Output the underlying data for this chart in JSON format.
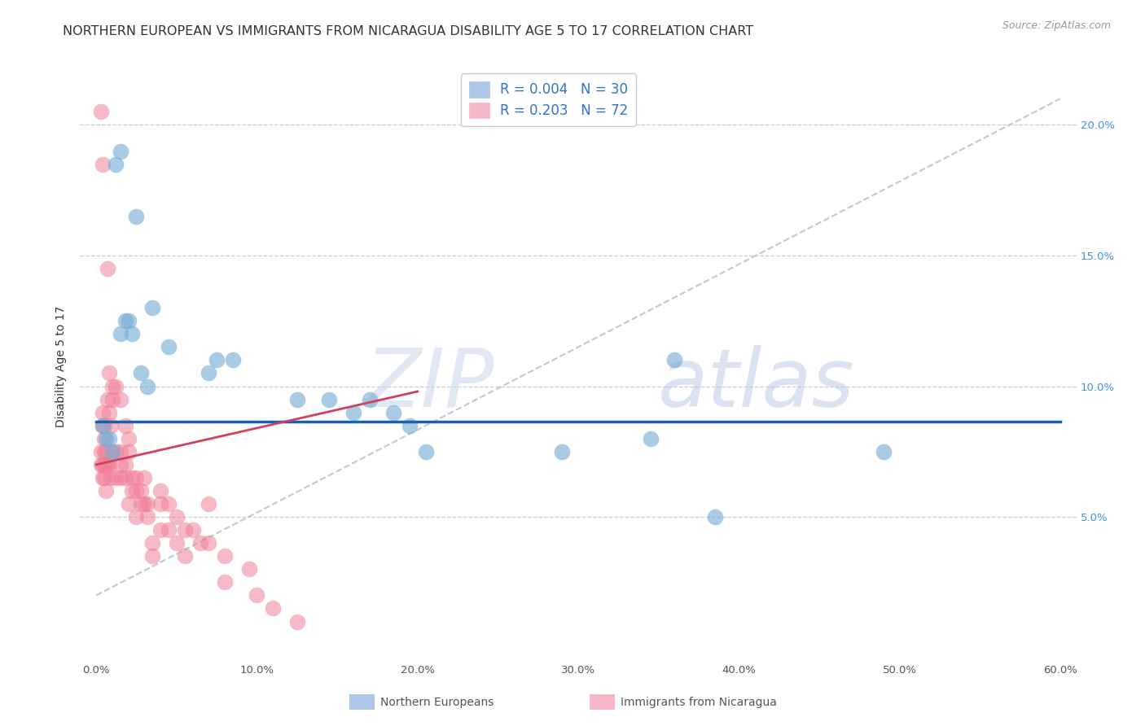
{
  "title": "NORTHERN EUROPEAN VS IMMIGRANTS FROM NICARAGUA DISABILITY AGE 5 TO 17 CORRELATION CHART",
  "source": "Source: ZipAtlas.com",
  "xlabel_ticks": [
    "0.0%",
    "10.0%",
    "20.0%",
    "30.0%",
    "40.0%",
    "50.0%",
    "60.0%"
  ],
  "ylabel_ticks_right": [
    "5.0%",
    "10.0%",
    "15.0%",
    "20.0%"
  ],
  "xlim": [
    -1.0,
    61.0
  ],
  "ylim": [
    -0.5,
    22.0
  ],
  "blue_scatter_x": [
    1.5,
    1.2,
    2.5,
    3.5,
    2.0,
    1.8,
    1.5,
    2.2,
    2.8,
    3.2,
    4.5,
    7.0,
    7.5,
    8.5,
    12.5,
    14.5,
    16.0,
    17.0,
    18.5,
    19.5,
    20.5,
    0.4,
    0.6,
    0.8,
    1.0,
    36.0,
    49.0,
    29.0,
    34.5,
    38.5
  ],
  "blue_scatter_y": [
    19.0,
    18.5,
    16.5,
    13.0,
    12.5,
    12.5,
    12.0,
    12.0,
    10.5,
    10.0,
    11.5,
    10.5,
    11.0,
    11.0,
    9.5,
    9.5,
    9.0,
    9.5,
    9.0,
    8.5,
    7.5,
    8.5,
    8.0,
    8.0,
    7.5,
    11.0,
    7.5,
    7.5,
    8.0,
    5.0
  ],
  "pink_scatter_x": [
    0.3,
    0.3,
    0.3,
    0.4,
    0.4,
    0.4,
    0.4,
    0.4,
    0.5,
    0.5,
    0.5,
    0.5,
    0.5,
    0.6,
    0.6,
    0.6,
    0.7,
    0.7,
    0.7,
    0.8,
    0.8,
    0.8,
    0.9,
    0.9,
    1.0,
    1.0,
    1.0,
    1.2,
    1.2,
    1.2,
    1.5,
    1.5,
    1.5,
    1.5,
    1.8,
    1.8,
    1.8,
    2.0,
    2.0,
    2.0,
    2.2,
    2.2,
    2.5,
    2.5,
    2.5,
    2.8,
    2.8,
    3.0,
    3.0,
    3.2,
    3.2,
    3.5,
    3.5,
    4.0,
    4.0,
    4.0,
    4.5,
    4.5,
    5.0,
    5.0,
    5.5,
    5.5,
    6.0,
    6.5,
    7.0,
    7.0,
    8.0,
    8.0,
    9.5,
    10.0,
    11.0,
    12.5
  ],
  "pink_scatter_y": [
    20.5,
    7.5,
    7.0,
    18.5,
    9.0,
    8.5,
    7.0,
    6.5,
    8.5,
    8.0,
    7.5,
    7.0,
    6.5,
    7.5,
    7.0,
    6.0,
    14.5,
    9.5,
    7.0,
    10.5,
    9.0,
    7.0,
    8.5,
    6.5,
    10.0,
    9.5,
    7.5,
    10.0,
    7.5,
    6.5,
    9.5,
    7.5,
    7.0,
    6.5,
    8.5,
    7.0,
    6.5,
    8.0,
    7.5,
    5.5,
    6.5,
    6.0,
    6.5,
    6.0,
    5.0,
    6.0,
    5.5,
    6.5,
    5.5,
    5.5,
    5.0,
    4.0,
    3.5,
    6.0,
    5.5,
    4.5,
    5.5,
    4.5,
    5.0,
    4.0,
    4.5,
    3.5,
    4.5,
    4.0,
    5.5,
    4.0,
    3.5,
    2.5,
    3.0,
    2.0,
    1.5,
    1.0
  ],
  "blue_line_x": [
    0.0,
    60.0
  ],
  "blue_line_y": [
    8.65,
    8.65
  ],
  "pink_line_x": [
    0.0,
    20.0
  ],
  "pink_line_y": [
    7.0,
    9.8
  ],
  "dashed_line_x": [
    0.0,
    60.0
  ],
  "dashed_line_y": [
    2.0,
    21.0
  ],
  "blue_color": "#7bafd4",
  "pink_color": "#f08098",
  "blue_line_color": "#1a5fb0",
  "pink_line_color": "#d04060",
  "dashed_line_color": "#c0c8d8",
  "watermark_zip": "ZIP",
  "watermark_atlas": "atlas",
  "background_color": "#ffffff",
  "title_fontsize": 11.5,
  "source_fontsize": 9,
  "axis_label_fontsize": 10,
  "tick_fontsize": 9.5,
  "legend_fontsize": 12,
  "ylabel": "Disability Age 5 to 17"
}
